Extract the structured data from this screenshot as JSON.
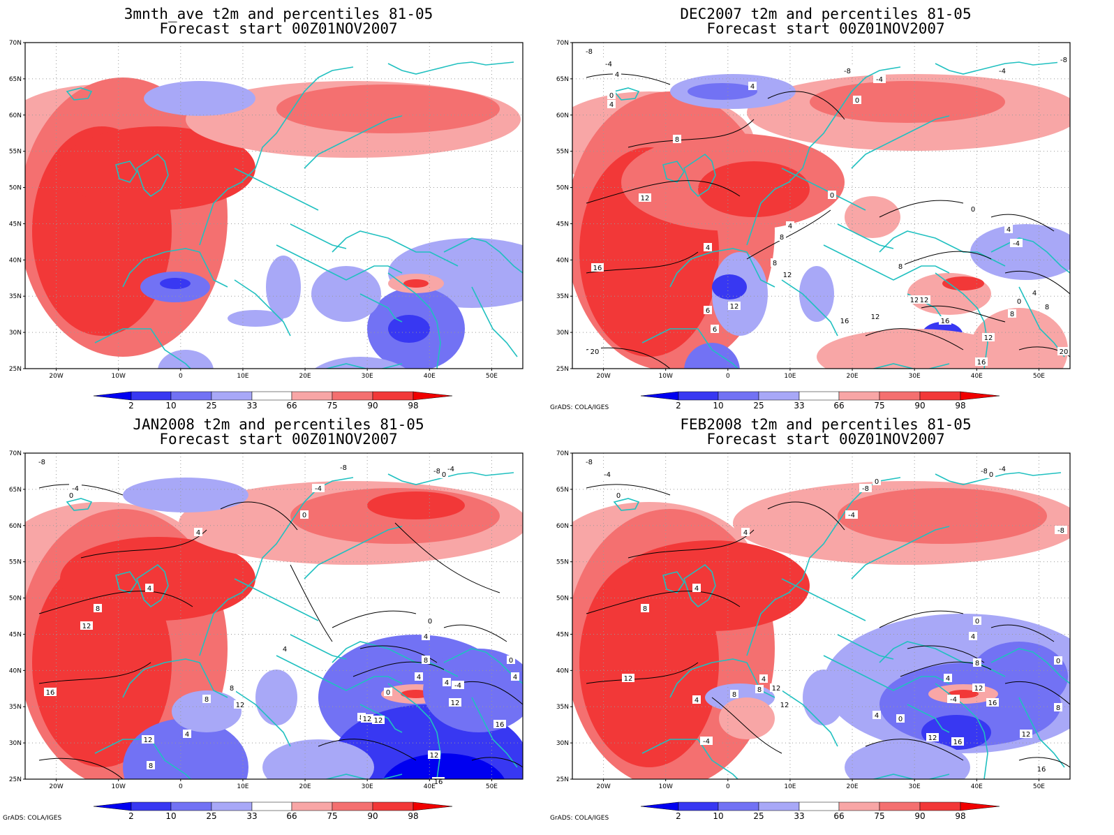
{
  "colors": {
    "blue_deep": "#0000f0",
    "blue_2": "#3838f2",
    "blue_3": "#7272f4",
    "blue_4": "#a8a8f7",
    "red_4": "#f8a6a6",
    "red_3": "#f47070",
    "red_2": "#f23838",
    "red_deep": "#f00000",
    "coast": "#20c0c0",
    "contour": "#000000",
    "grid": "#999999"
  },
  "colorbar": {
    "labels": [
      "2",
      "10",
      "25",
      "33",
      "66",
      "75",
      "90",
      "98"
    ]
  },
  "axes": {
    "lat_labels": [
      "70N",
      "65N",
      "60N",
      "55N",
      "50N",
      "45N",
      "40N",
      "35N",
      "30N",
      "25N"
    ],
    "lon_labels": [
      "20W",
      "10W",
      "0",
      "10E",
      "20E",
      "30E",
      "40E",
      "50E"
    ]
  },
  "credit": "GrADS: COLA/IGES",
  "panels": [
    {
      "title_line1": "3mnth_ave t2m and percentiles 81-05",
      "title_line2": "Forecast start 00Z01NOV2007",
      "show_credit": false,
      "contour_labels": []
    },
    {
      "title_line1": "DEC2007 t2m and percentiles 81-05",
      "title_line2": "Forecast start 00Z01NOV2007",
      "show_credit": true,
      "contour_labels": [
        "-8",
        "-4",
        "4",
        "0",
        "4",
        "8",
        "12",
        "16",
        "20",
        "-8",
        "-4",
        "0",
        "4",
        "-4",
        "-8",
        "0",
        "4",
        "8",
        "4",
        "12",
        "8",
        "8",
        "12",
        "6",
        "6",
        "12",
        "16",
        "12",
        "12",
        "16",
        "12",
        "16",
        "20",
        "0",
        "4",
        "-4",
        "8",
        "0",
        "4",
        "8"
      ]
    },
    {
      "title_line1": "JAN2008 t2m and percentiles 81-05",
      "title_line2": "Forecast start 00Z01NOV2007",
      "show_credit": true,
      "contour_labels": [
        "-8",
        "-4",
        "0",
        "4",
        "4",
        "8",
        "12",
        "16",
        "-8",
        "-4",
        "0",
        "-8",
        "-4",
        "0",
        "4",
        "8",
        "12",
        "4",
        "12",
        "8",
        "8",
        "12",
        "4",
        "8",
        "0",
        "12",
        "4",
        "-4",
        "0",
        "4",
        "8",
        "12",
        "16",
        "12",
        "16",
        "0",
        "4"
      ]
    },
    {
      "title_line1": "FEB2008 t2m and percentiles 81-05",
      "title_line2": "Forecast start 00Z01NOV2007",
      "show_credit": true,
      "contour_labels": [
        "-8",
        "-4",
        "0",
        "4",
        "4",
        "8",
        "12",
        "-8",
        "-4",
        "0",
        "-8",
        "-4",
        "0",
        "4",
        "8",
        "12",
        "4",
        "8",
        "-4",
        "12",
        "4",
        "0",
        "4",
        "-4",
        "0",
        "4",
        "8",
        "12",
        "16",
        "12",
        "16",
        "8",
        "16",
        "12",
        "0",
        "-8"
      ]
    }
  ]
}
